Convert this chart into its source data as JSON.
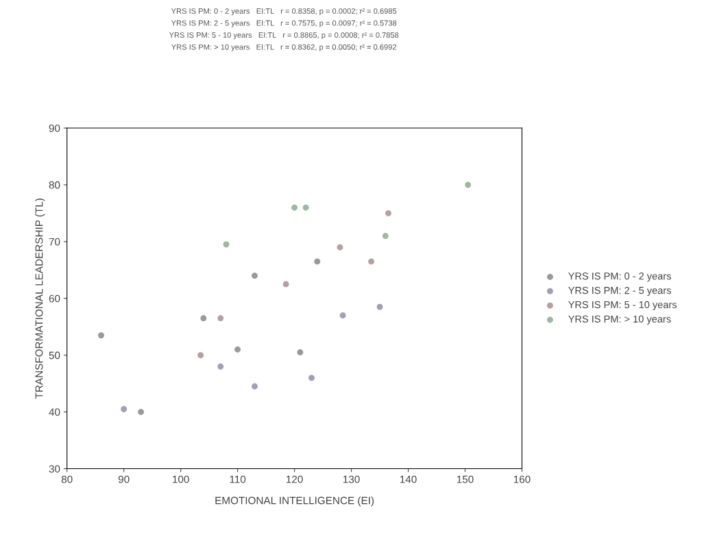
{
  "chart_data": {
    "type": "scatter",
    "annotations": [
      "YRS IS PM: 0 - 2 years   EI:TL   r = 0.8358, p = 0.0002; r² = 0.6985",
      "YRS IS PM: 2 - 5 years   EI:TL   r = 0.7575, p = 0.0097; r² = 0.5738",
      "YRS IS PM: 5 - 10 years   EI:TL   r = 0.8865, p = 0.0008; r² = 0.7858",
      "YRS IS PM: > 10 years   EI:TL   r = 0.8362, p = 0.0050; r² = 0.6992"
    ],
    "xlabel": "EMOTIONAL INTELLIGENCE (EI)",
    "ylabel": "TRANSFORMATIONAL LEADERSHIP (TL)",
    "xlim": [
      80,
      160
    ],
    "xticks": [
      80,
      90,
      100,
      110,
      120,
      130,
      140,
      150,
      160
    ],
    "ylim": [
      30,
      90
    ],
    "yticks": [
      30,
      40,
      50,
      60,
      70,
      80,
      90
    ],
    "grid": false,
    "legend": "right",
    "marker": "circle",
    "series": [
      {
        "name": "YRS IS PM: 0 - 2 years",
        "color": "#9a9a9a",
        "x": [
          86,
          93,
          104,
          110,
          113,
          121,
          124
        ],
        "values": [
          53.5,
          40,
          56.5,
          51,
          64,
          50.5,
          66.5
        ]
      },
      {
        "name": "YRS IS PM: 2 - 5 years",
        "color": "#a0a0b8",
        "x": [
          90,
          107,
          113,
          123,
          128.5,
          135
        ],
        "values": [
          40.5,
          48,
          44.5,
          46,
          57,
          58.5
        ]
      },
      {
        "name": "YRS IS PM: 5 - 10 years",
        "color": "#b8a0a0",
        "x": [
          103.5,
          107,
          118.5,
          128,
          133.5,
          136.5
        ],
        "values": [
          50,
          56.5,
          62.5,
          69,
          66.5,
          75
        ]
      },
      {
        "name": "YRS IS PM: > 10 years",
        "color": "#a0b8a0",
        "x": [
          108,
          120,
          122,
          136,
          150.5
        ],
        "values": [
          69.5,
          76,
          76,
          71,
          80
        ]
      }
    ]
  }
}
